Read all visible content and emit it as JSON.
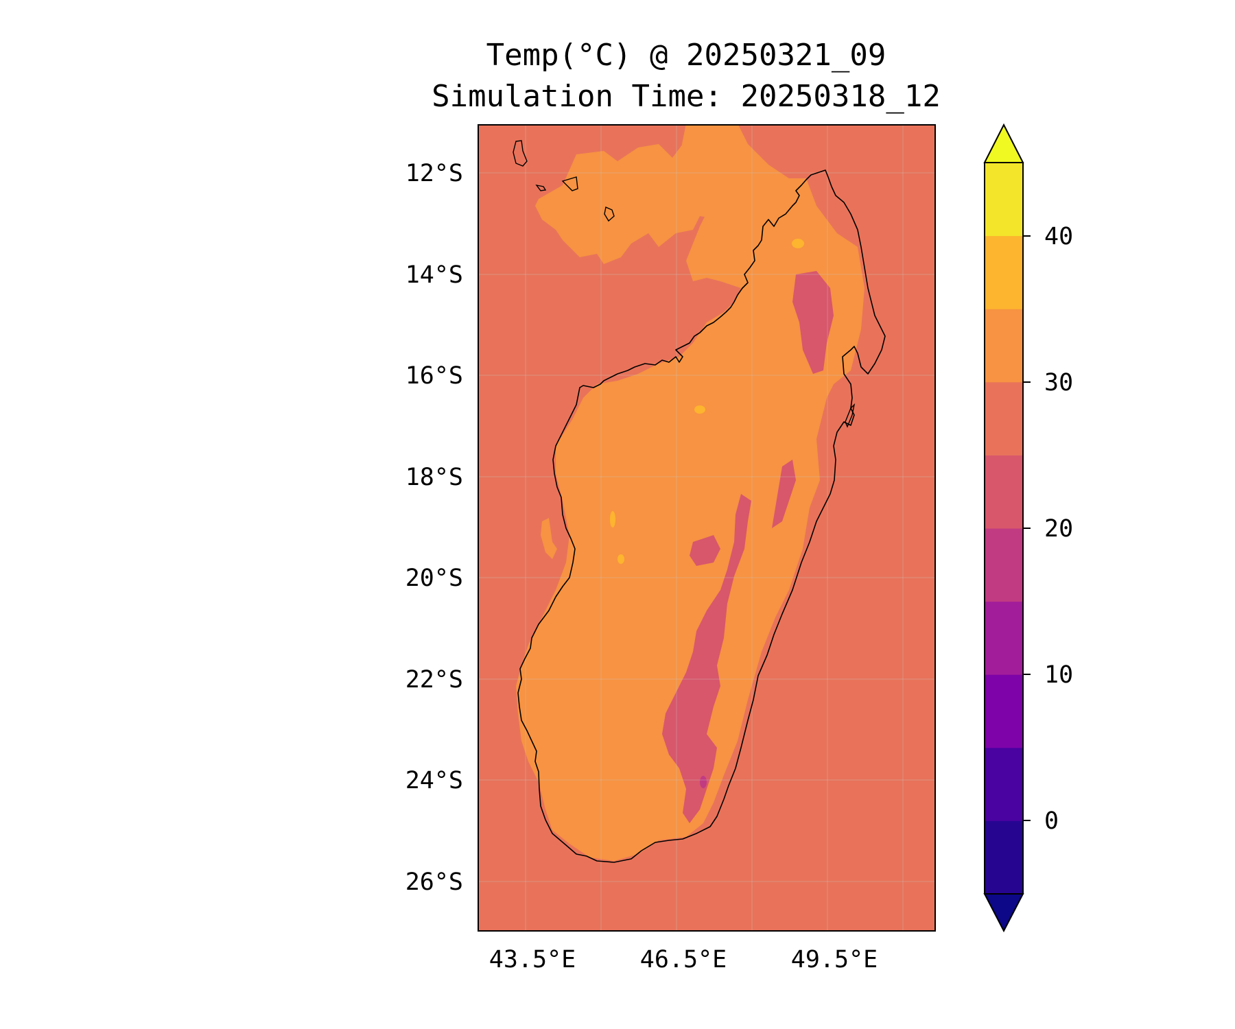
{
  "title": {
    "line1": "Temp(°C) @ 20250321_09",
    "line2": "Simulation Time: 20250318_12"
  },
  "map": {
    "region": "Madagascar",
    "lat_ticks": [
      "12°S",
      "14°S",
      "16°S",
      "18°S",
      "20°S",
      "22°S",
      "24°S",
      "26°S"
    ],
    "lon_ticks": [
      "43.5°E",
      "46.5°E",
      "49.5°E"
    ],
    "lat_range": [
      -27,
      -11.1
    ],
    "lon_range": [
      42.5,
      51.5
    ],
    "background_field_color": "#e8735a"
  },
  "colorbar": {
    "ticks": [
      "0",
      "10",
      "20",
      "30",
      "40"
    ],
    "levels": [
      -5,
      0,
      5,
      10,
      15,
      20,
      25,
      30,
      35,
      40,
      45
    ],
    "extend": "both",
    "under_color": "#0d0887",
    "over_color": "#f0f921",
    "band_colors": [
      "#260591",
      "#4a02a0",
      "#7e03a8",
      "#a21d9a",
      "#c13b82",
      "#d8576b",
      "#e8735a",
      "#f79342",
      "#fdb42f",
      "#f3e52a"
    ]
  },
  "colormap": "plasma"
}
